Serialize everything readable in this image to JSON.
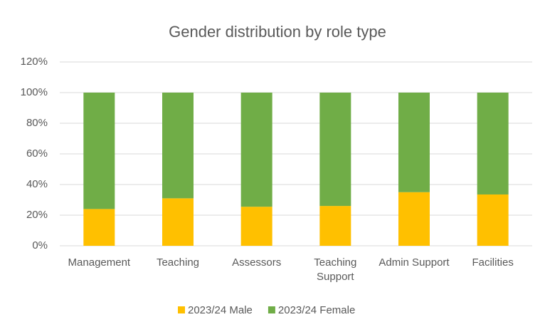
{
  "chart_data": {
    "type": "stacked_bar",
    "title": "Gender distribution by role type",
    "categories": [
      "Management",
      "Teaching",
      "Assessors",
      "Teaching Support",
      "Admin Support",
      "Facilities"
    ],
    "series": [
      {
        "name": "2023/24 Male",
        "color": "#ffc000",
        "values": [
          24,
          31,
          25.5,
          26,
          35,
          33.5
        ]
      },
      {
        "name": "2023/24 Female",
        "color": "#70ad47",
        "values": [
          76,
          69,
          74.5,
          74,
          65,
          66.5
        ]
      }
    ],
    "ylim": [
      0,
      120
    ],
    "yticks": [
      {
        "value": 0,
        "label": "0%"
      },
      {
        "value": 20,
        "label": "20%"
      },
      {
        "value": 40,
        "label": "40%"
      },
      {
        "value": 60,
        "label": "60%"
      },
      {
        "value": 80,
        "label": "80%"
      },
      {
        "value": 100,
        "label": "100%"
      },
      {
        "value": 120,
        "label": "120%"
      }
    ],
    "grid": true,
    "legend": "bottom"
  }
}
